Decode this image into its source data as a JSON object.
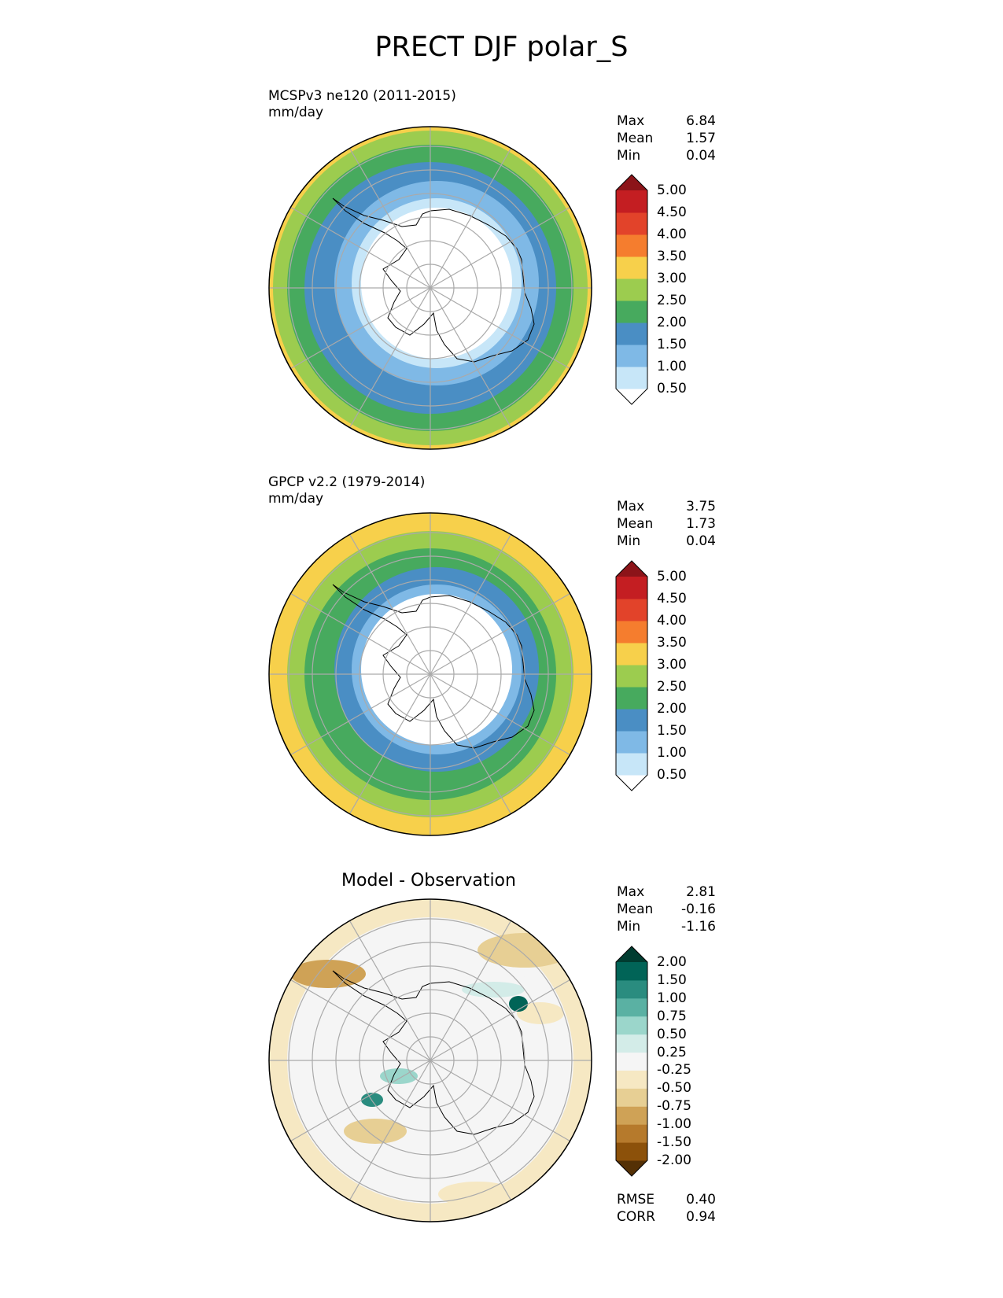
{
  "title": "PRECT DJF polar_S",
  "panels": [
    {
      "label_line1": "MCSPv3 ne120 (2011-2015)",
      "label_line2": "mm/day",
      "stats": [
        [
          "Max",
          "6.84"
        ],
        [
          "Mean",
          "1.57"
        ],
        [
          "Min",
          "0.04"
        ]
      ],
      "colorbar": {
        "ticks": [
          "0.50",
          "1.00",
          "1.50",
          "2.00",
          "2.50",
          "3.00",
          "3.50",
          "4.00",
          "4.50",
          "5.00"
        ],
        "colors": [
          "#ffffff",
          "#c7e6f8",
          "#7fb9e6",
          "#4a8ec4",
          "#47aa5e",
          "#9ccc4f",
          "#f7d04b",
          "#f57d2e",
          "#e2432a",
          "#c41e22",
          "#8c1419"
        ]
      },
      "map": {
        "zones": [
          "#9ccc4f",
          "#47aa5e",
          "#4a8ec4",
          "#7fb9e6",
          "#c7e6f8",
          "#ffffff"
        ],
        "rim": "#f7d04b"
      }
    },
    {
      "label_line1": "GPCP v2.2 (1979-2014)",
      "label_line2": "mm/day",
      "stats": [
        [
          "Max",
          "3.75"
        ],
        [
          "Mean",
          "1.73"
        ],
        [
          "Min",
          "0.04"
        ]
      ],
      "colorbar": {
        "ticks": [
          "0.50",
          "1.00",
          "1.50",
          "2.00",
          "2.50",
          "3.00",
          "3.50",
          "4.00",
          "4.50",
          "5.00"
        ],
        "colors": [
          "#ffffff",
          "#c7e6f8",
          "#7fb9e6",
          "#4a8ec4",
          "#47aa5e",
          "#9ccc4f",
          "#f7d04b",
          "#f57d2e",
          "#e2432a",
          "#c41e22",
          "#8c1419"
        ]
      },
      "map": {
        "zones": [
          "#f7d04b",
          "#9ccc4f",
          "#47aa5e",
          "#4a8ec4",
          "#7fb9e6",
          "#ffffff"
        ],
        "rim": "#f7d04b"
      }
    },
    {
      "title": "Model - Observation",
      "stats": [
        [
          "Max",
          "2.81"
        ],
        [
          "Mean",
          "-0.16"
        ],
        [
          "Min",
          "-1.16"
        ]
      ],
      "bottom_stats": [
        [
          "RMSE",
          "0.40"
        ],
        [
          "CORR",
          "0.94"
        ]
      ],
      "colorbar": {
        "ticks": [
          "-2.00",
          "-1.50",
          "-1.00",
          "-0.75",
          "-0.50",
          "-0.25",
          "0.25",
          "0.50",
          "0.75",
          "1.00",
          "1.50",
          "2.00"
        ],
        "colors": [
          "#543005",
          "#8c510a",
          "#b67a2c",
          "#cfa256",
          "#e7cf94",
          "#f6e8c3",
          "#f5f5f5",
          "#d3ece8",
          "#9bd6cb",
          "#5ab1a3",
          "#2a8c7f",
          "#016457",
          "#003c30"
        ]
      },
      "map": {
        "zones": [
          "#f6e8c3",
          "#f5f5f5",
          "#f5f5f5",
          "#f5f5f5",
          "#f5f5f5",
          "#f5f5f5"
        ],
        "rim": "#f6e8c3"
      }
    }
  ]
}
